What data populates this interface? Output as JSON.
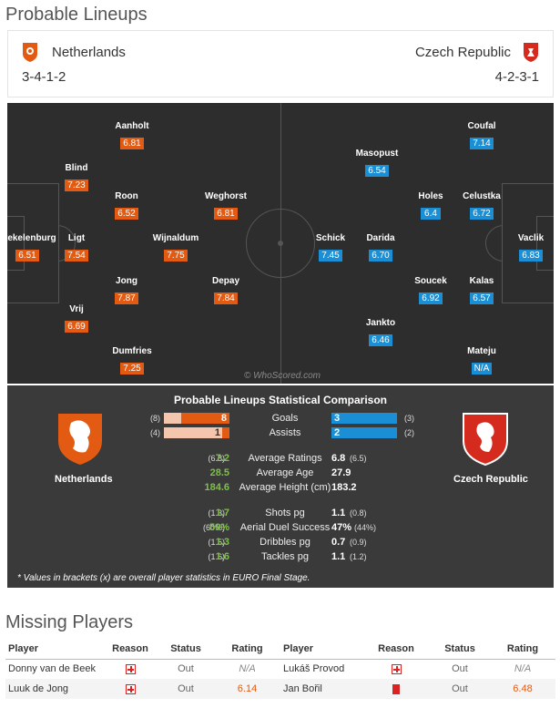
{
  "lineups": {
    "title": "Probable Lineups",
    "home": {
      "name": "Netherlands",
      "formation": "3-4-1-2",
      "color": "#e35a13"
    },
    "away": {
      "name": "Czech Republic",
      "formation": "4-2-3-1",
      "color": "#1a8fd6"
    },
    "home_players": [
      {
        "name": "Aanholt",
        "rating": "6.81"
      },
      {
        "name": "Blind",
        "rating": "7.23"
      },
      {
        "name": "Roon",
        "rating": "6.52"
      },
      {
        "name": "Weghorst",
        "rating": "6.81"
      },
      {
        "name": "Stekelenburg",
        "rating": "6.51"
      },
      {
        "name": "Ligt",
        "rating": "7.54"
      },
      {
        "name": "Wijnaldum",
        "rating": "7.75"
      },
      {
        "name": "Jong",
        "rating": "7.87"
      },
      {
        "name": "Depay",
        "rating": "7.84"
      },
      {
        "name": "Vrij",
        "rating": "6.69"
      },
      {
        "name": "Dumfries",
        "rating": "7.25"
      }
    ],
    "away_players": [
      {
        "name": "Coufal",
        "rating": "7.14"
      },
      {
        "name": "Masopust",
        "rating": "6.54"
      },
      {
        "name": "Holes",
        "rating": "6.4"
      },
      {
        "name": "Celustka",
        "rating": "6.72"
      },
      {
        "name": "Schick",
        "rating": "7.45"
      },
      {
        "name": "Darida",
        "rating": "6.70"
      },
      {
        "name": "Vaclik",
        "rating": "6.83"
      },
      {
        "name": "Soucek",
        "rating": "6.92"
      },
      {
        "name": "Kalas",
        "rating": "6.57"
      },
      {
        "name": "Jankto",
        "rating": "6.46"
      },
      {
        "name": "Mateju",
        "rating": "N/A"
      }
    ],
    "watermark": "© WhoScored.com"
  },
  "comparison": {
    "title": "Probable Lineups Statistical Comparison",
    "home_team": "Netherlands",
    "away_team": "Czech Republic",
    "bars": [
      {
        "label": "Goals",
        "home": "8",
        "home_bracket": "(8)",
        "away": "3",
        "away_bracket": "(3)",
        "home_share": 0.73,
        "away_share": 0.27
      },
      {
        "label": "Assists",
        "home": "1",
        "home_bracket": "(4)",
        "away": "2",
        "away_bracket": "(2)",
        "home_share": 0.33,
        "away_share": 0.67
      }
    ],
    "stats_a": [
      {
        "label": "Average Ratings",
        "home": "7.2",
        "home_bracket": "(6.8)",
        "away": "6.8",
        "away_bracket": "(6.5)"
      },
      {
        "label": "Average Age",
        "home": "28.5",
        "home_bracket": "",
        "away": "27.9",
        "away_bracket": ""
      },
      {
        "label": "Average Height (cm)",
        "home": "184.6",
        "home_bracket": "",
        "away": "183.2",
        "away_bracket": ""
      }
    ],
    "stats_b": [
      {
        "label": "Shots pg",
        "home": "1.7",
        "home_bracket": "(1.3)",
        "away": "1.1",
        "away_bracket": "(0.8)"
      },
      {
        "label": "Aerial Duel Success",
        "home": "59%",
        "home_bracket": "(60%)",
        "away": "47%",
        "away_bracket": "(44%)"
      },
      {
        "label": "Dribbles pg",
        "home": "1.3",
        "home_bracket": "(1.5)",
        "away": "0.7",
        "away_bracket": "(0.9)"
      },
      {
        "label": "Tackles pg",
        "home": "1.6",
        "home_bracket": "(1.6)",
        "away": "1.1",
        "away_bracket": "(1.2)"
      }
    ],
    "note": "* Values in brackets (x) are overall player statistics in EURO Final Stage."
  },
  "missing": {
    "title": "Missing Players",
    "headers": [
      "Player",
      "Reason",
      "Status",
      "Rating",
      "Player",
      "Reason",
      "Status",
      "Rating"
    ],
    "rows": [
      {
        "home_player": "Donny van de Beek",
        "home_reason": "injury",
        "home_status": "Out",
        "home_rating": "N/A",
        "away_player": "Lukáš Provod",
        "away_reason": "injury",
        "away_status": "Out",
        "away_rating": "N/A"
      },
      {
        "home_player": "Luuk de Jong",
        "home_reason": "injury",
        "home_status": "Out",
        "home_rating": "6.14",
        "away_player": "Jan Bořil",
        "away_reason": "red-card",
        "away_status": "Out",
        "away_rating": "6.48"
      }
    ]
  }
}
